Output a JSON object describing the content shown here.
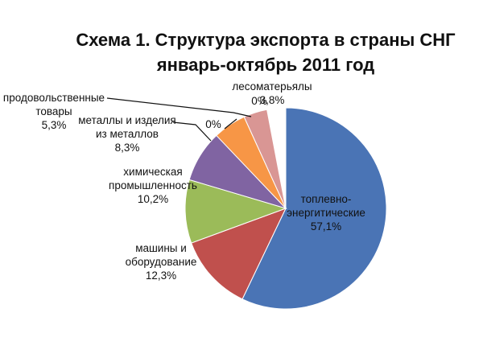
{
  "chart_data": {
    "type": "pie",
    "title": "Схема 1. Структура экспорта в страны СНГ",
    "subtitle": "январь-октябрь 2011 год",
    "slices": [
      {
        "label_lines": [
          "топлевно-",
          "энергитические"
        ],
        "value_label": "57,1%",
        "value": 57.1,
        "color": "#4a74b5"
      },
      {
        "label_lines": [
          "машины и",
          "оборудование"
        ],
        "value_label": "12,3%",
        "value": 12.3,
        "color": "#c0504d"
      },
      {
        "label_lines": [
          "химическая",
          "промышленность"
        ],
        "value_label": "10,2%",
        "value": 10.2,
        "color": "#9bbb59"
      },
      {
        "label_lines": [
          "металлы и изделия",
          "из металлов"
        ],
        "value_label": "8,3%",
        "value": 8.3,
        "color": "#8064a2"
      },
      {
        "label_lines": [],
        "value_label": "0%",
        "value": 0.0,
        "color": "#4bacc6"
      },
      {
        "label_lines": [
          "продовольственные",
          "товары"
        ],
        "value_label": "5,3%",
        "value": 5.3,
        "color": "#f79646"
      },
      {
        "label_lines": [],
        "value_label": "0%",
        "value": 0.0,
        "color": "#2c4d75"
      },
      {
        "label_lines": [
          "лесоматерьялы"
        ],
        "value_label": "3,8%",
        "value": 3.8,
        "color": "#d99694"
      }
    ]
  }
}
